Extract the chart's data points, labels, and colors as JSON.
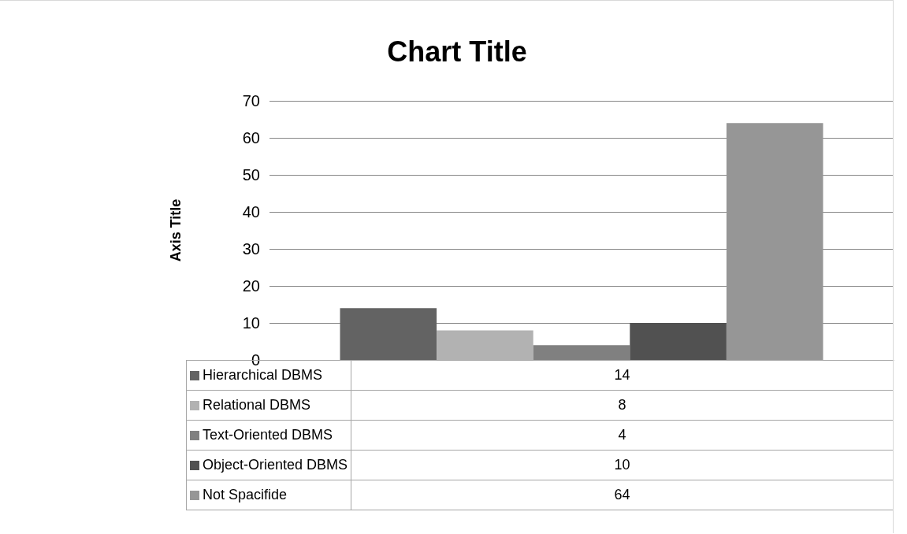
{
  "chart_data": {
    "type": "bar",
    "title": "Chart Title",
    "ylabel": "Axis Title",
    "categories": [
      null
    ],
    "series": [
      {
        "name": "Hierarchical DBMS",
        "color": "#636363",
        "values": [
          14
        ]
      },
      {
        "name": "Relational DBMS",
        "color": "#b2b2b2",
        "values": [
          8
        ]
      },
      {
        "name": "Text-Oriented DBMS",
        "color": "#808080",
        "values": [
          4
        ]
      },
      {
        "name": "Object-Oriented DBMS",
        "color": "#515151",
        "values": [
          10
        ]
      },
      {
        "name": "Not Spacifide",
        "color": "#969696",
        "values": [
          64
        ]
      }
    ],
    "ylim": [
      0,
      70
    ],
    "yticks": [
      0,
      10,
      20,
      30,
      40,
      50,
      60,
      70
    ],
    "annotations": [
      "14",
      "8",
      "4",
      "10",
      "64"
    ],
    "grid": "y",
    "legend": "bottom"
  }
}
